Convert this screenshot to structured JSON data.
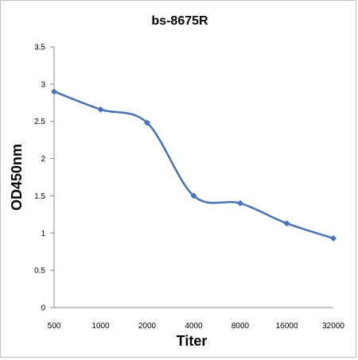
{
  "chart_data": {
    "type": "line",
    "title": "bs-8675R",
    "xlabel": "Titer",
    "ylabel": "OD450nm",
    "categories": [
      "500",
      "1000",
      "2000",
      "4000",
      "8000",
      "16000",
      "32000"
    ],
    "series": [
      {
        "values": [
          2.9,
          2.66,
          2.48,
          1.5,
          1.4,
          1.13,
          0.93
        ],
        "color": "#4472C4"
      }
    ],
    "ylim": [
      0,
      3.5
    ],
    "yticks": [
      "0",
      "0.5",
      "1",
      "1.5",
      "2",
      "2.5",
      "3",
      "3.5"
    ],
    "grid": false,
    "legend": "none",
    "smooth": true
  }
}
